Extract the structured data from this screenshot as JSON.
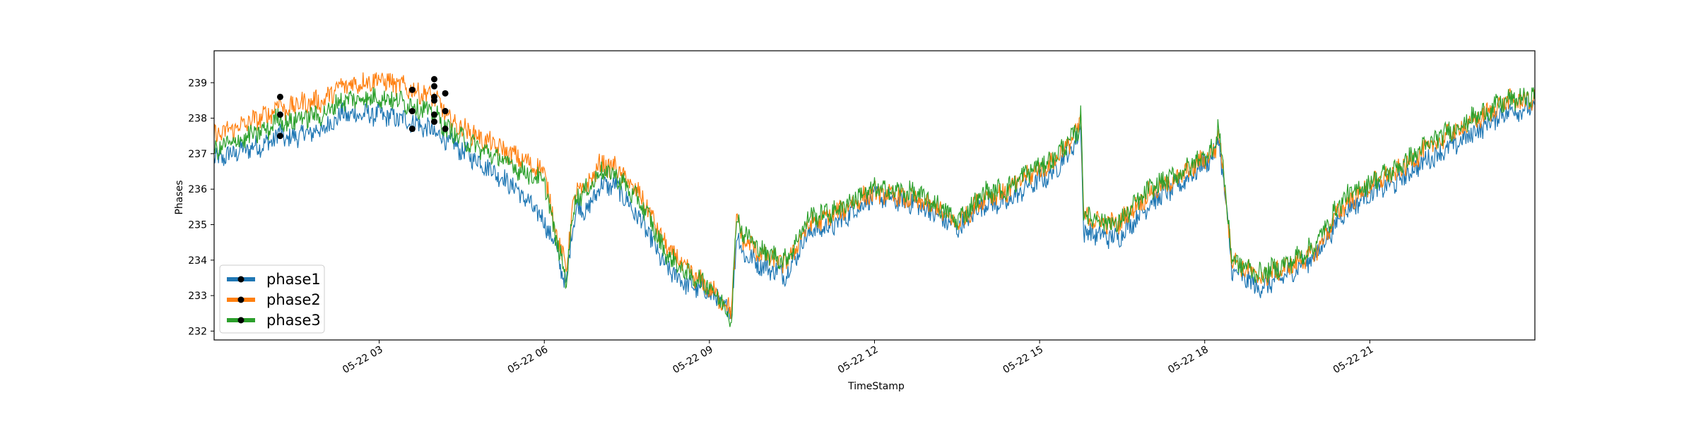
{
  "chart_data": {
    "type": "line",
    "xlabel": "TimeStamp",
    "ylabel": "Phases",
    "xlim": [
      "05-22 00:00",
      "05-22 24:00"
    ],
    "ylim": [
      231.75,
      239.9
    ],
    "x_ticks": [
      {
        "hour": 3,
        "label": "05-22 03"
      },
      {
        "hour": 6,
        "label": "05-22 06"
      },
      {
        "hour": 9,
        "label": "05-22 09"
      },
      {
        "hour": 12,
        "label": "05-22 12"
      },
      {
        "hour": 15,
        "label": "05-22 15"
      },
      {
        "hour": 18,
        "label": "05-22 18"
      },
      {
        "hour": 21,
        "label": "05-22 21"
      }
    ],
    "y_ticks": [
      232,
      233,
      234,
      235,
      236,
      237,
      238,
      239
    ],
    "legend_position": "lower-left",
    "grid": false,
    "x_hours": [
      0,
      0.5,
      1.0,
      1.2,
      1.3,
      1.5,
      2.0,
      2.3,
      3.0,
      3.6,
      4.0,
      4.3,
      5.0,
      5.5,
      6.0,
      6.2,
      6.4,
      6.5,
      6.6,
      6.8,
      7.0,
      7.3,
      7.8,
      8.2,
      8.6,
      9.0,
      9.4,
      9.5,
      9.6,
      10.0,
      10.4,
      10.8,
      11.3,
      11.7,
      12.0,
      12.7,
      13.1,
      13.5,
      14.0,
      14.4,
      14.8,
      15.2,
      15.7,
      15.75,
      15.8,
      16.4,
      17.0,
      17.6,
      18.2,
      18.25,
      18.5,
      19.0,
      19.5,
      20.0,
      20.5,
      21.0,
      21.5,
      22.0,
      22.5,
      23.0,
      23.5,
      24.0
    ],
    "series": [
      {
        "name": "phase1",
        "color": "#1f77b4",
        "values": [
          236.8,
          237.1,
          237.3,
          237.6,
          237.4,
          237.5,
          237.7,
          238.1,
          238.1,
          237.9,
          237.6,
          237.3,
          236.6,
          236.0,
          235.1,
          234.4,
          233.2,
          234.9,
          235.5,
          235.4,
          236.1,
          236.1,
          235.0,
          233.8,
          233.3,
          233.1,
          232.5,
          234.8,
          234.2,
          233.8,
          233.6,
          234.8,
          235.0,
          235.5,
          235.8,
          235.6,
          235.3,
          234.9,
          235.6,
          235.6,
          236.1,
          236.4,
          237.4,
          237.9,
          234.8,
          234.6,
          235.6,
          236.2,
          237.0,
          237.6,
          233.7,
          233.2,
          233.6,
          234.1,
          235.3,
          235.9,
          236.2,
          236.8,
          237.2,
          237.7,
          238.2,
          238.3
        ]
      },
      {
        "name": "phase2",
        "color": "#ff7f0e",
        "values": [
          237.5,
          237.8,
          238.1,
          238.5,
          238.2,
          238.4,
          238.5,
          238.9,
          239.1,
          238.8,
          238.6,
          237.9,
          237.3,
          236.9,
          236.5,
          234.9,
          233.7,
          235.4,
          235.9,
          236.1,
          236.7,
          236.6,
          235.7,
          234.4,
          233.7,
          233.2,
          232.6,
          235.2,
          234.6,
          234.1,
          233.9,
          235.0,
          235.3,
          235.7,
          235.9,
          235.7,
          235.5,
          235.0,
          235.8,
          235.9,
          236.4,
          236.7,
          237.6,
          238.3,
          235.2,
          235.0,
          235.9,
          236.4,
          237.1,
          237.8,
          234.0,
          233.5,
          233.8,
          234.2,
          235.5,
          236.1,
          236.5,
          237.1,
          237.6,
          238.0,
          238.5,
          238.5
        ]
      },
      {
        "name": "phase3",
        "color": "#2ca02c",
        "values": [
          237.1,
          237.4,
          237.7,
          238.1,
          237.8,
          238.0,
          238.1,
          238.5,
          238.6,
          238.4,
          238.1,
          237.6,
          237.0,
          236.6,
          236.2,
          234.7,
          233.4,
          235.2,
          235.8,
          236.0,
          236.5,
          236.4,
          235.5,
          234.2,
          233.6,
          233.3,
          232.4,
          235.3,
          234.8,
          234.2,
          234.0,
          235.2,
          235.4,
          235.8,
          236.0,
          235.9,
          235.6,
          235.1,
          235.9,
          236.0,
          236.5,
          236.8,
          237.6,
          238.2,
          235.3,
          235.0,
          236.0,
          236.5,
          237.2,
          237.9,
          234.0,
          233.6,
          233.9,
          234.4,
          235.7,
          236.2,
          236.6,
          237.2,
          237.7,
          238.1,
          238.5,
          238.6
        ]
      }
    ],
    "markers": [
      {
        "series": "phase1",
        "hour": 1.2,
        "value": 237.5
      },
      {
        "series": "phase2",
        "hour": 1.2,
        "value": 238.6
      },
      {
        "series": "phase3",
        "hour": 1.2,
        "value": 238.1
      },
      {
        "series": "phase1",
        "hour": 3.6,
        "value": 237.7
      },
      {
        "series": "phase2",
        "hour": 3.6,
        "value": 238.8
      },
      {
        "series": "phase3",
        "hour": 3.6,
        "value": 238.2
      },
      {
        "series": "phase1",
        "hour": 4.0,
        "value": 237.9
      },
      {
        "series": "phase1",
        "hour": 4.0,
        "value": 238.1
      },
      {
        "series": "phase2",
        "hour": 4.0,
        "value": 239.1
      },
      {
        "series": "phase2",
        "hour": 4.0,
        "value": 238.9
      },
      {
        "series": "phase3",
        "hour": 4.0,
        "value": 238.5
      },
      {
        "series": "phase3",
        "hour": 4.0,
        "value": 238.6
      },
      {
        "series": "phase1",
        "hour": 4.2,
        "value": 237.7
      },
      {
        "series": "phase2",
        "hour": 4.2,
        "value": 238.7
      },
      {
        "series": "phase3",
        "hour": 4.2,
        "value": 238.2
      }
    ]
  }
}
